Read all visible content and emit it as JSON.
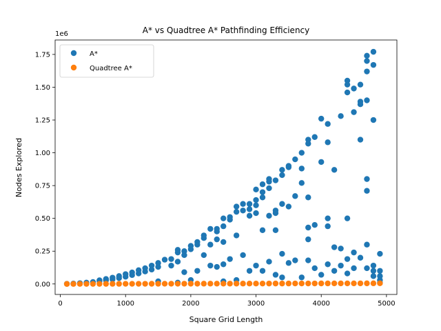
{
  "chart_data": {
    "type": "scatter",
    "title": "A* vs Quadtree A* Pathfinding Efficiency",
    "xlabel": "Square Grid Length",
    "ylabel": "Nodes Explored",
    "y_multiplier_label": "1e6",
    "xlim": [
      -80,
      5160
    ],
    "ylim": [
      -80000,
      1860000
    ],
    "xticks": [
      0,
      1000,
      2000,
      3000,
      4000,
      5000
    ],
    "yticks": [
      0,
      250000,
      500000,
      750000,
      1000000,
      1250000,
      1500000,
      1750000
    ],
    "ytick_labels": [
      "0.00",
      "0.25",
      "0.50",
      "0.75",
      "1.00",
      "1.25",
      "1.50",
      "1.75"
    ],
    "legend_position": "upper-left",
    "series": [
      {
        "name": "A*",
        "color": "#1f77b4",
        "points": [
          [
            100,
            1000
          ],
          [
            200,
            3000
          ],
          [
            300,
            6000
          ],
          [
            400,
            10000
          ],
          [
            500,
            15000
          ],
          [
            600,
            20000
          ],
          [
            600,
            28000
          ],
          [
            700,
            28000
          ],
          [
            700,
            38000
          ],
          [
            800,
            35000
          ],
          [
            800,
            48000
          ],
          [
            900,
            45000
          ],
          [
            900,
            60000
          ],
          [
            1000,
            55000
          ],
          [
            1000,
            75000
          ],
          [
            1100,
            68000
          ],
          [
            1100,
            88000
          ],
          [
            1200,
            80000
          ],
          [
            1200,
            105000
          ],
          [
            1300,
            95000
          ],
          [
            1300,
            120000
          ],
          [
            1400,
            110000
          ],
          [
            1400,
            140000
          ],
          [
            1500,
            130000
          ],
          [
            1500,
            160000
          ],
          [
            1500,
            20000
          ],
          [
            1600,
            185000
          ],
          [
            1700,
            190000
          ],
          [
            1700,
            140000
          ],
          [
            1800,
            240000
          ],
          [
            1800,
            260000
          ],
          [
            1800,
            170000
          ],
          [
            1800,
            10000
          ],
          [
            1900,
            220000
          ],
          [
            1900,
            250000
          ],
          [
            1900,
            90000
          ],
          [
            2000,
            265000
          ],
          [
            2000,
            290000
          ],
          [
            2000,
            30000
          ],
          [
            2100,
            300000
          ],
          [
            2100,
            320000
          ],
          [
            2100,
            100000
          ],
          [
            2200,
            350000
          ],
          [
            2200,
            370000
          ],
          [
            2200,
            220000
          ],
          [
            2300,
            420000
          ],
          [
            2300,
            300000
          ],
          [
            2300,
            140000
          ],
          [
            2400,
            400000
          ],
          [
            2400,
            420000
          ],
          [
            2400,
            340000
          ],
          [
            2400,
            130000
          ],
          [
            2500,
            440000
          ],
          [
            2500,
            500000
          ],
          [
            2500,
            320000
          ],
          [
            2500,
            150000
          ],
          [
            2500,
            20000
          ],
          [
            2600,
            490000
          ],
          [
            2600,
            510000
          ],
          [
            2600,
            190000
          ],
          [
            2700,
            550000
          ],
          [
            2700,
            590000
          ],
          [
            2700,
            370000
          ],
          [
            2700,
            30000
          ],
          [
            2800,
            560000
          ],
          [
            2800,
            610000
          ],
          [
            2800,
            220000
          ],
          [
            2900,
            570000
          ],
          [
            2900,
            610000
          ],
          [
            2900,
            520000
          ],
          [
            2900,
            100000
          ],
          [
            3000,
            600000
          ],
          [
            3000,
            640000
          ],
          [
            3000,
            720000
          ],
          [
            3000,
            540000
          ],
          [
            3000,
            140000
          ],
          [
            3100,
            660000
          ],
          [
            3100,
            700000
          ],
          [
            3100,
            760000
          ],
          [
            3100,
            410000
          ],
          [
            3100,
            100000
          ],
          [
            3200,
            780000
          ],
          [
            3200,
            800000
          ],
          [
            3200,
            730000
          ],
          [
            3200,
            520000
          ],
          [
            3200,
            170000
          ],
          [
            3300,
            540000
          ],
          [
            3300,
            560000
          ],
          [
            3300,
            790000
          ],
          [
            3300,
            410000
          ],
          [
            3300,
            70000
          ],
          [
            3400,
            870000
          ],
          [
            3400,
            830000
          ],
          [
            3400,
            610000
          ],
          [
            3400,
            230000
          ],
          [
            3400,
            50000
          ],
          [
            3500,
            890000
          ],
          [
            3500,
            900000
          ],
          [
            3500,
            590000
          ],
          [
            3500,
            160000
          ],
          [
            3600,
            950000
          ],
          [
            3600,
            670000
          ],
          [
            3600,
            180000
          ],
          [
            3700,
            1000000
          ],
          [
            3700,
            880000
          ],
          [
            3700,
            770000
          ],
          [
            3700,
            50000
          ],
          [
            3800,
            1100000
          ],
          [
            3800,
            1070000
          ],
          [
            3800,
            660000
          ],
          [
            3800,
            430000
          ],
          [
            3800,
            340000
          ],
          [
            3800,
            180000
          ],
          [
            3900,
            1120000
          ],
          [
            3900,
            450000
          ],
          [
            3900,
            120000
          ],
          [
            4000,
            1260000
          ],
          [
            4000,
            930000
          ],
          [
            4000,
            70000
          ],
          [
            4100,
            1220000
          ],
          [
            4100,
            1080000
          ],
          [
            4100,
            500000
          ],
          [
            4100,
            440000
          ],
          [
            4100,
            150000
          ],
          [
            4200,
            870000
          ],
          [
            4200,
            280000
          ],
          [
            4200,
            100000
          ],
          [
            4300,
            1280000
          ],
          [
            4300,
            270000
          ],
          [
            4300,
            140000
          ],
          [
            4400,
            1550000
          ],
          [
            4400,
            1520000
          ],
          [
            4400,
            1460000
          ],
          [
            4400,
            500000
          ],
          [
            4400,
            190000
          ],
          [
            4400,
            80000
          ],
          [
            4500,
            1490000
          ],
          [
            4500,
            1310000
          ],
          [
            4500,
            240000
          ],
          [
            4500,
            120000
          ],
          [
            4600,
            1520000
          ],
          [
            4600,
            1390000
          ],
          [
            4600,
            1370000
          ],
          [
            4600,
            1100000
          ],
          [
            4600,
            200000
          ],
          [
            4700,
            1740000
          ],
          [
            4700,
            1700000
          ],
          [
            4700,
            1620000
          ],
          [
            4700,
            1400000
          ],
          [
            4700,
            800000
          ],
          [
            4700,
            710000
          ],
          [
            4700,
            300000
          ],
          [
            4700,
            120000
          ],
          [
            4800,
            1770000
          ],
          [
            4800,
            1670000
          ],
          [
            4800,
            1250000
          ],
          [
            4800,
            140000
          ],
          [
            4800,
            100000
          ],
          [
            4800,
            60000
          ],
          [
            4900,
            230000
          ],
          [
            4900,
            100000
          ],
          [
            4900,
            60000
          ],
          [
            4900,
            30000
          ],
          [
            4900,
            10000
          ]
        ]
      },
      {
        "name": "Quadtree A*",
        "color": "#ff7f0e",
        "points": [
          [
            100,
            200
          ],
          [
            200,
            300
          ],
          [
            300,
            400
          ],
          [
            400,
            500
          ],
          [
            500,
            600
          ],
          [
            600,
            700
          ],
          [
            700,
            800
          ],
          [
            800,
            900
          ],
          [
            900,
            1000
          ],
          [
            1000,
            1100
          ],
          [
            1100,
            1200
          ],
          [
            1200,
            1300
          ],
          [
            1300,
            1400
          ],
          [
            1400,
            1500
          ],
          [
            1500,
            1600
          ],
          [
            1600,
            1700
          ],
          [
            1700,
            1800
          ],
          [
            1800,
            1900
          ],
          [
            1900,
            2000
          ],
          [
            2000,
            2100
          ],
          [
            2100,
            2200
          ],
          [
            2200,
            2300
          ],
          [
            2300,
            2400
          ],
          [
            2400,
            2500
          ],
          [
            2500,
            2600
          ],
          [
            2600,
            2700
          ],
          [
            2700,
            2800
          ],
          [
            2800,
            2900
          ],
          [
            2900,
            3000
          ],
          [
            3000,
            3100
          ],
          [
            3100,
            3200
          ],
          [
            3200,
            3300
          ],
          [
            3300,
            3400
          ],
          [
            3400,
            3500
          ],
          [
            3500,
            3600
          ],
          [
            3600,
            3700
          ],
          [
            3700,
            3800
          ],
          [
            3800,
            3900
          ],
          [
            3900,
            4000
          ],
          [
            4000,
            4100
          ],
          [
            4100,
            4200
          ],
          [
            4200,
            4300
          ],
          [
            4300,
            4400
          ],
          [
            4400,
            4500
          ],
          [
            4500,
            4600
          ],
          [
            4600,
            4700
          ],
          [
            4700,
            4800
          ],
          [
            4800,
            4900
          ],
          [
            4900,
            5000
          ]
        ]
      }
    ]
  }
}
